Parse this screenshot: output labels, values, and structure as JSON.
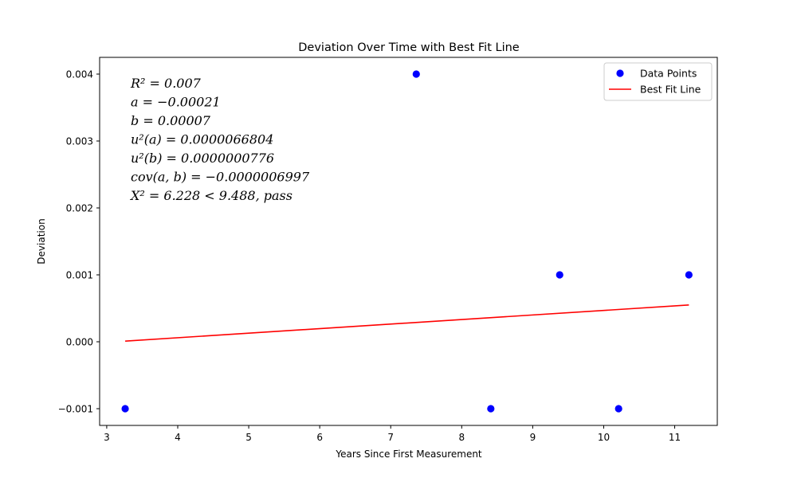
{
  "chart_data": {
    "type": "scatter",
    "title": "Deviation Over Time with Best Fit Line",
    "xlabel": "Years Since First Measurement",
    "ylabel": "Deviation",
    "xlim": [
      2.9,
      11.6
    ],
    "ylim": [
      -0.00125,
      0.00425
    ],
    "xticks": [
      3,
      4,
      5,
      6,
      7,
      8,
      9,
      10,
      11
    ],
    "xtick_labels": [
      "3",
      "4",
      "5",
      "6",
      "7",
      "8",
      "9",
      "10",
      "11"
    ],
    "yticks": [
      -0.001,
      0.0,
      0.001,
      0.002,
      0.003,
      0.004
    ],
    "ytick_labels": [
      "−0.001",
      "0.000",
      "0.001",
      "0.002",
      "0.003",
      "0.004"
    ],
    "grid": false,
    "legend_position": "top-right",
    "series": [
      {
        "name": "Data Points",
        "kind": "scatter",
        "color": "#0000ff",
        "x": [
          3.26,
          7.36,
          8.41,
          9.38,
          10.21,
          11.2
        ],
        "y": [
          -0.001,
          0.004,
          -0.001,
          0.001,
          -0.001,
          0.001
        ]
      },
      {
        "name": "Best Fit Line",
        "kind": "line",
        "color": "#ff0000",
        "x": [
          3.26,
          11.2
        ],
        "y": [
          1e-05,
          0.00055
        ]
      }
    ],
    "annotations": [
      "R² = 0.007",
      "a = −0.00021",
      "b = 0.00007",
      "u²(a) = 0.0000066804",
      "u²(b) = 0.0000000776",
      "cov(a, b) = −0.0000006997",
      "X² = 6.228 < 9.488, pass"
    ]
  }
}
